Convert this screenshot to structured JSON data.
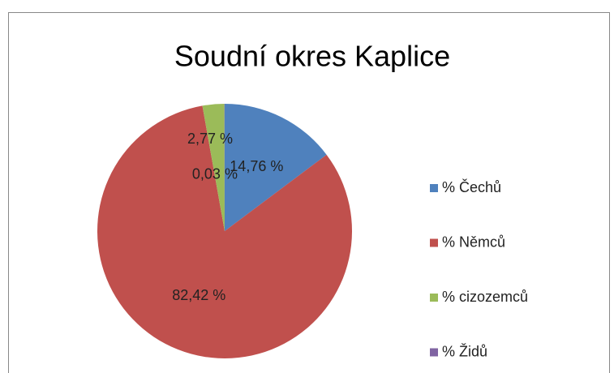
{
  "chart_data": {
    "type": "pie",
    "title": "Soudní okres Kaplice",
    "categories": [
      "% Čechů",
      "% Němců",
      "% cizozemců",
      "% Židů"
    ],
    "values": [
      14.76,
      82.42,
      2.77,
      0.03
    ],
    "value_labels": [
      "14,76 %",
      "82,42 %",
      "2,77 %",
      "0,03 %"
    ],
    "colors": [
      "#4f81bd",
      "#c0504d",
      "#9bbb59",
      "#8064a2"
    ],
    "legend": "right"
  }
}
